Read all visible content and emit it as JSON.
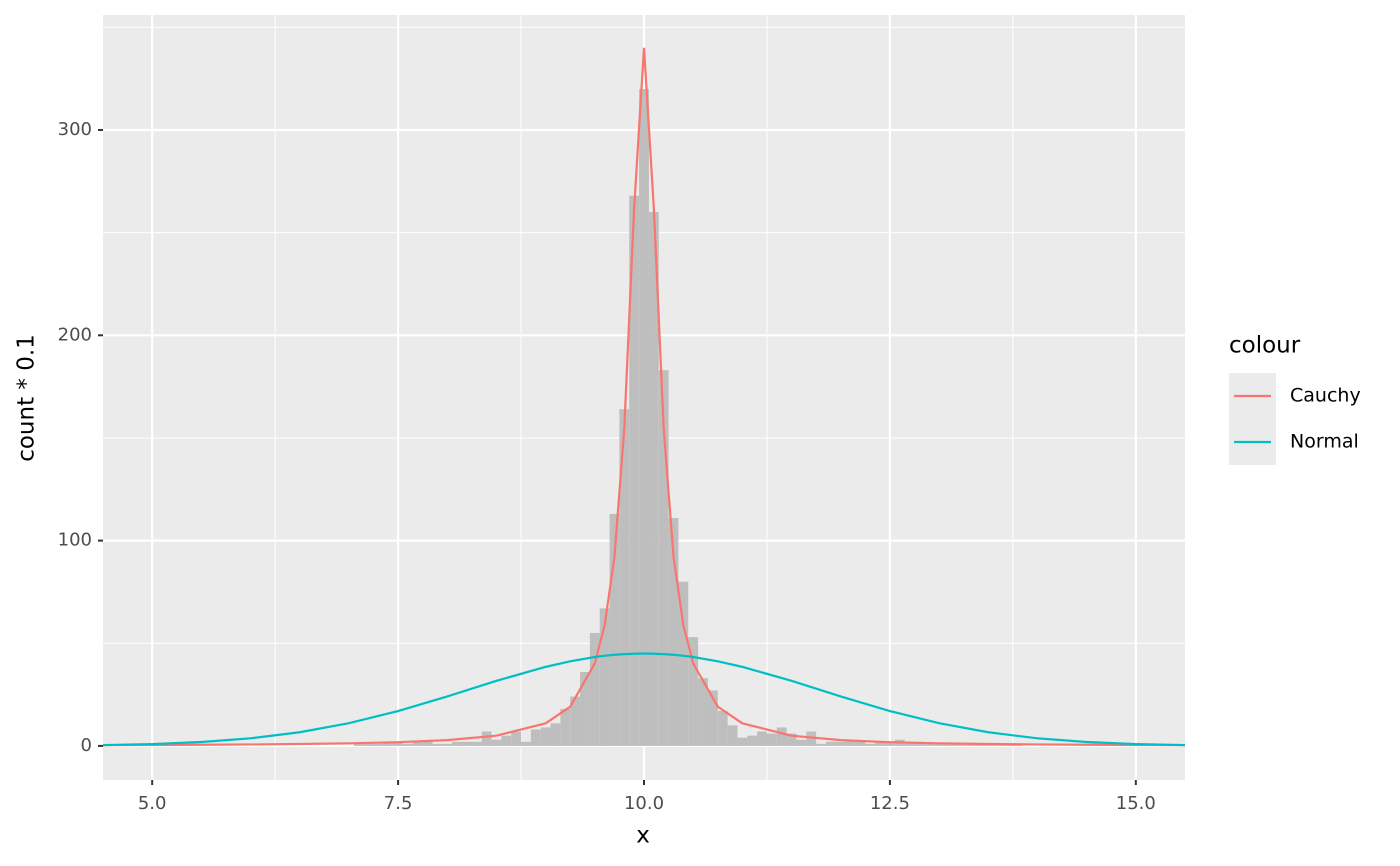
{
  "chart_data": {
    "type": "histogram",
    "x_label": "x",
    "y_label": "count * 0.1",
    "xlim": [
      4.5,
      15.5
    ],
    "ylim": [
      -16.6,
      356
    ],
    "xticks": [
      {
        "value": 5,
        "label": "5.0"
      },
      7.5,
      {
        "value": 10,
        "label": "10.0"
      },
      12.5,
      {
        "value": 15,
        "label": "15.0"
      }
    ],
    "yticks": [
      0,
      100,
      200,
      300
    ],
    "x_minor_ticks": [
      6.25,
      8.75,
      11.25,
      13.75
    ],
    "y_minor_ticks": [
      50,
      150,
      250,
      350
    ],
    "grid": true,
    "bar_color": "#bebebe",
    "bins": [
      7.05,
      7.15,
      7.25,
      7.35,
      7.45,
      7.55,
      7.65,
      7.75,
      7.85,
      7.95,
      8.05,
      8.15,
      8.25,
      8.35,
      8.45,
      8.55,
      8.65,
      8.75,
      8.85,
      8.95,
      9.05,
      9.15,
      9.25,
      9.35,
      9.45,
      9.55,
      9.65,
      9.75,
      9.85,
      9.95,
      10.05,
      10.15,
      10.25,
      10.35,
      10.45,
      10.55,
      10.65,
      10.75,
      10.85,
      10.95,
      11.05,
      11.15,
      11.25,
      11.35,
      11.45,
      11.55,
      11.65,
      11.75,
      11.85,
      11.95,
      12.05,
      12.15,
      12.25,
      12.35,
      12.45,
      12.55,
      12.65,
      12.75,
      12.85,
      12.95,
      13.05,
      13.15,
      13.25,
      13.35,
      13.45,
      13.55,
      13.65,
      13.75,
      13.85
    ],
    "counts": [
      1,
      1,
      1,
      2,
      2,
      1,
      2,
      2,
      1,
      1,
      2,
      2,
      2,
      7,
      3,
      5,
      7,
      2,
      8,
      9,
      11,
      18,
      24,
      36,
      55,
      67,
      113,
      164,
      268,
      320,
      260,
      183,
      111,
      80,
      53,
      33,
      27,
      17,
      10,
      4,
      5,
      7,
      6,
      9,
      6,
      3,
      7,
      1,
      2,
      2,
      3,
      2,
      1,
      2,
      2,
      3,
      2,
      2,
      1,
      1,
      1,
      1,
      1,
      1,
      1,
      1,
      1,
      1
    ],
    "legend_title": "colour",
    "legend_position": "right",
    "line_x": [
      4.5,
      5,
      5.5,
      6,
      6.5,
      7,
      7.5,
      8,
      8.5,
      9,
      9.25,
      9.5,
      9.6,
      9.7,
      9.8,
      9.9,
      10,
      10.1,
      10.2,
      10.3,
      10.4,
      10.5,
      10.75,
      11,
      11.5,
      12,
      12.5,
      13,
      13.5,
      14,
      14.5,
      15,
      15.5
    ],
    "series": [
      {
        "name": "Cauchy",
        "color": "#F8766D",
        "values": [
          0.38,
          0.46,
          0.56,
          0.71,
          0.93,
          1.26,
          1.81,
          2.83,
          4.99,
          11.0,
          19.1,
          40.2,
          58.8,
          92.2,
          155,
          262,
          340,
          262,
          155,
          92.2,
          58.8,
          40.2,
          19.1,
          11.0,
          4.99,
          2.83,
          1.81,
          1.26,
          0.93,
          0.71,
          0.56,
          0.46,
          0.38
        ]
      },
      {
        "name": "Normal",
        "color": "#00BFC4",
        "values": [
          0.4,
          0.91,
          1.91,
          3.69,
          6.66,
          11.05,
          16.97,
          24.1,
          31.7,
          38.5,
          41.2,
          43.3,
          43.9,
          44.4,
          44.7,
          44.9,
          45,
          44.9,
          44.7,
          44.4,
          43.9,
          43.3,
          41.2,
          38.5,
          31.7,
          24.1,
          16.97,
          11.05,
          6.66,
          3.69,
          1.91,
          0.91,
          0.4
        ]
      }
    ]
  }
}
